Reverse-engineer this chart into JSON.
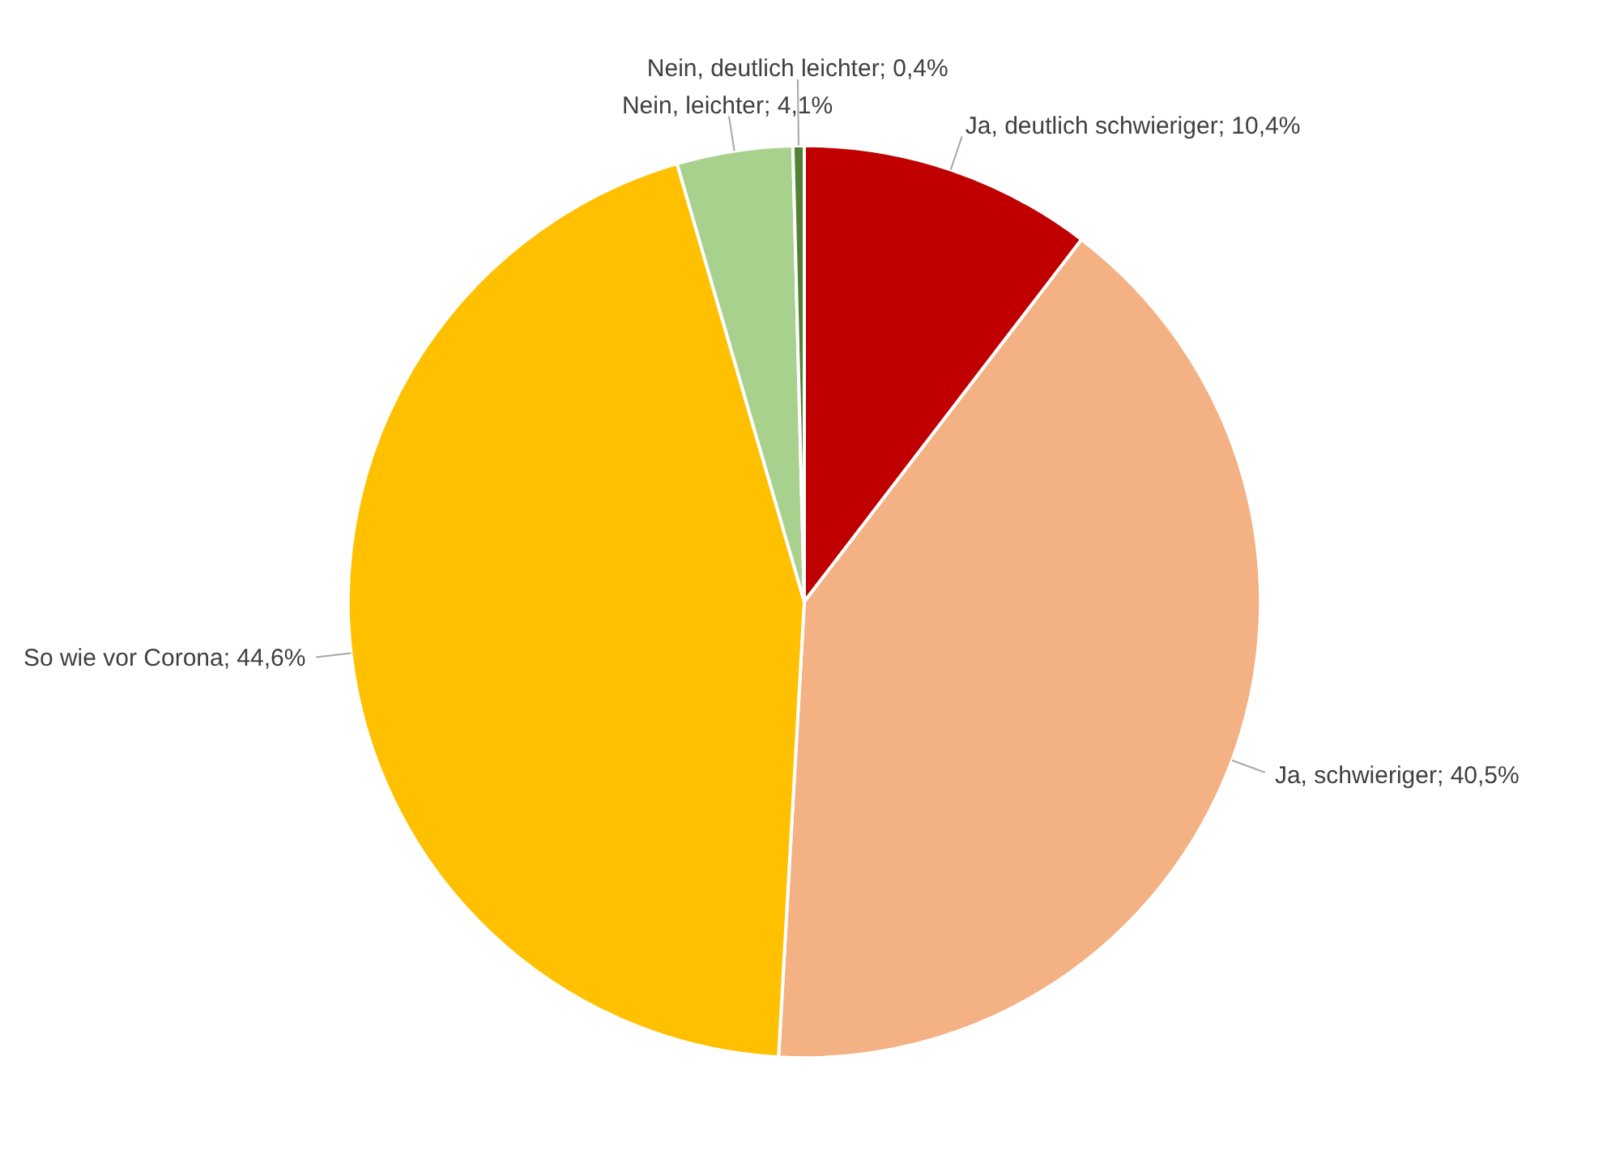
{
  "chart_data": {
    "type": "pie",
    "categories": [
      "Ja, deutlich schwieriger",
      "Ja, schwieriger",
      "So wie vor Corona",
      "Nein, leichter",
      "Nein, deutlich leichter"
    ],
    "values": [
      10.4,
      40.5,
      44.6,
      4.1,
      0.4
    ],
    "value_labels": [
      "10,4%",
      "40,5%",
      "44,6%",
      "4,1%",
      "0,4%"
    ],
    "colors": [
      "#c00000",
      "#f4b183",
      "#ffc000",
      "#a9d18e",
      "#548235"
    ]
  }
}
